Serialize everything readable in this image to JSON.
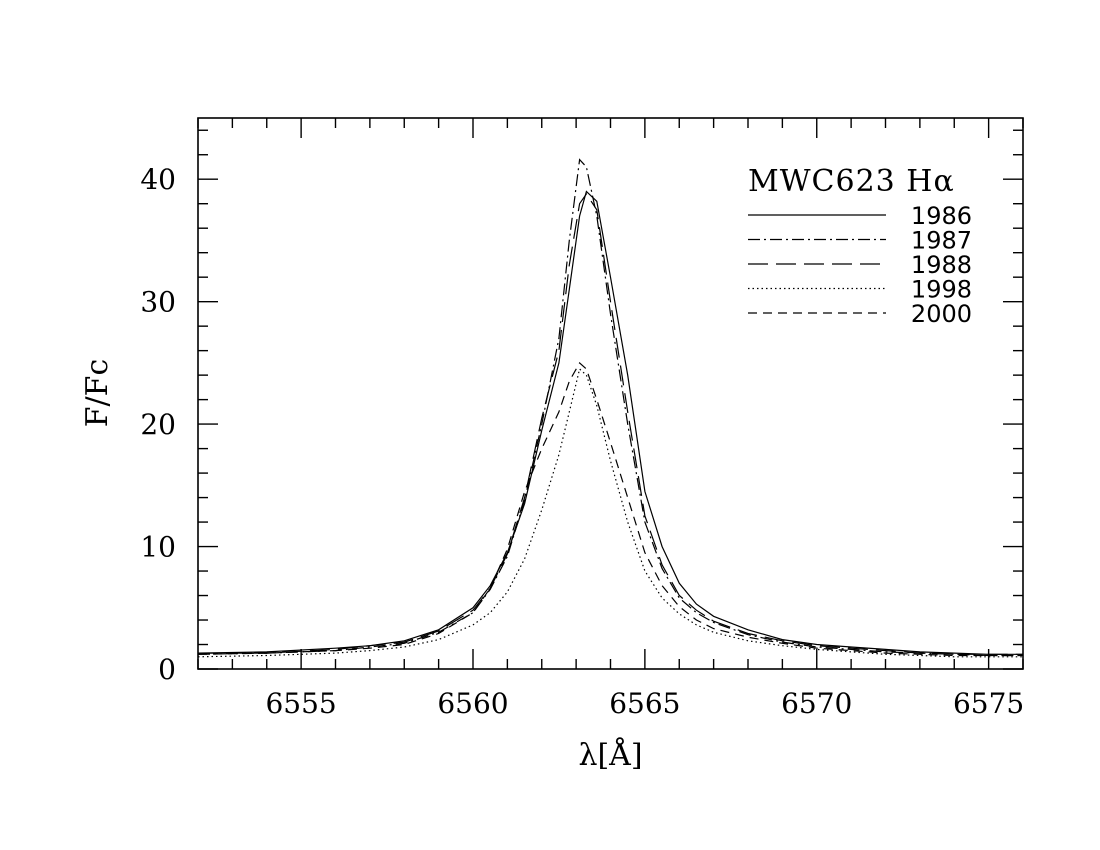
{
  "chart_data": {
    "type": "line",
    "title": "MWC623 Hα",
    "xlabel": "λ[Å]",
    "ylabel": "F/Fc",
    "xlim": [
      6552,
      6576
    ],
    "ylim": [
      0,
      45
    ],
    "x_ticks": [
      6555,
      6560,
      6565,
      6570,
      6575
    ],
    "y_ticks": [
      0,
      10,
      20,
      30,
      40
    ],
    "legend_position": "top-right",
    "grid": false,
    "series": [
      {
        "name": "1986",
        "dash": "solid",
        "points": [
          [
            6552,
            1.3
          ],
          [
            6554,
            1.4
          ],
          [
            6556,
            1.7
          ],
          [
            6557,
            1.9
          ],
          [
            6558,
            2.3
          ],
          [
            6559,
            3.2
          ],
          [
            6560,
            5.0
          ],
          [
            6560.5,
            6.8
          ],
          [
            6561,
            9.5
          ],
          [
            6561.5,
            13.5
          ],
          [
            6562,
            19.5
          ],
          [
            6562.5,
            25
          ],
          [
            6562.8,
            31
          ],
          [
            6563.1,
            37
          ],
          [
            6563.3,
            39.0
          ],
          [
            6563.6,
            38.2
          ],
          [
            6564,
            32
          ],
          [
            6564.5,
            24
          ],
          [
            6565,
            14.5
          ],
          [
            6565.5,
            10
          ],
          [
            6566,
            7.0
          ],
          [
            6566.5,
            5.3
          ],
          [
            6567,
            4.3
          ],
          [
            6568,
            3.2
          ],
          [
            6569,
            2.4
          ],
          [
            6570,
            2.0
          ],
          [
            6571,
            1.8
          ],
          [
            6572,
            1.6
          ],
          [
            6573,
            1.4
          ],
          [
            6574,
            1.3
          ],
          [
            6575,
            1.2
          ],
          [
            6576,
            1.2
          ]
        ]
      },
      {
        "name": "1987",
        "dash": "dashdot",
        "points": [
          [
            6552,
            1.2
          ],
          [
            6554,
            1.3
          ],
          [
            6556,
            1.5
          ],
          [
            6557,
            1.8
          ],
          [
            6558,
            2.1
          ],
          [
            6559,
            3.0
          ],
          [
            6560,
            4.6
          ],
          [
            6560.5,
            6.5
          ],
          [
            6561,
            9.2
          ],
          [
            6561.5,
            13.8
          ],
          [
            6562,
            20
          ],
          [
            6562.5,
            27
          ],
          [
            6562.8,
            35
          ],
          [
            6563.1,
            41.6
          ],
          [
            6563.3,
            41
          ],
          [
            6563.6,
            37
          ],
          [
            6564,
            29
          ],
          [
            6564.5,
            20
          ],
          [
            6565,
            12
          ],
          [
            6565.5,
            8.2
          ],
          [
            6566,
            5.8
          ],
          [
            6566.5,
            4.6
          ],
          [
            6567,
            3.8
          ],
          [
            6568,
            2.8
          ],
          [
            6569,
            2.2
          ],
          [
            6570,
            1.8
          ],
          [
            6571,
            1.6
          ],
          [
            6572,
            1.4
          ],
          [
            6573,
            1.3
          ],
          [
            6574,
            1.2
          ],
          [
            6575,
            1.1
          ],
          [
            6576,
            1.1
          ]
        ]
      },
      {
        "name": "1988",
        "dash": "longdash",
        "points": [
          [
            6552,
            1.3
          ],
          [
            6554,
            1.3
          ],
          [
            6556,
            1.6
          ],
          [
            6557,
            1.9
          ],
          [
            6558,
            2.2
          ],
          [
            6559,
            3.1
          ],
          [
            6560,
            4.8
          ],
          [
            6560.5,
            6.6
          ],
          [
            6561,
            9.4
          ],
          [
            6561.5,
            14
          ],
          [
            6562,
            20.5
          ],
          [
            6562.5,
            26
          ],
          [
            6562.8,
            33
          ],
          [
            6563.1,
            38
          ],
          [
            6563.3,
            38.8
          ],
          [
            6563.6,
            37.5
          ],
          [
            6564,
            30
          ],
          [
            6564.5,
            21
          ],
          [
            6565,
            12.5
          ],
          [
            6565.5,
            8.5
          ],
          [
            6566,
            6.0
          ],
          [
            6566.5,
            4.8
          ],
          [
            6567,
            3.9
          ],
          [
            6568,
            2.9
          ],
          [
            6569,
            2.3
          ],
          [
            6570,
            1.9
          ],
          [
            6571,
            1.7
          ],
          [
            6572,
            1.5
          ],
          [
            6573,
            1.3
          ],
          [
            6574,
            1.2
          ],
          [
            6575,
            1.2
          ],
          [
            6576,
            1.2
          ]
        ]
      },
      {
        "name": "1998",
        "dash": "dotted",
        "points": [
          [
            6552,
            1.0
          ],
          [
            6554,
            1.1
          ],
          [
            6556,
            1.3
          ],
          [
            6557,
            1.5
          ],
          [
            6558,
            1.8
          ],
          [
            6559,
            2.4
          ],
          [
            6560,
            3.6
          ],
          [
            6560.5,
            4.6
          ],
          [
            6561,
            6.3
          ],
          [
            6561.5,
            9.0
          ],
          [
            6562,
            13
          ],
          [
            6562.5,
            17.5
          ],
          [
            6562.8,
            21
          ],
          [
            6563.1,
            24.5
          ],
          [
            6563.3,
            24
          ],
          [
            6563.6,
            21.5
          ],
          [
            6564,
            17
          ],
          [
            6564.5,
            12
          ],
          [
            6565,
            8.0
          ],
          [
            6565.5,
            5.8
          ],
          [
            6566,
            4.5
          ],
          [
            6566.5,
            3.6
          ],
          [
            6567,
            3.0
          ],
          [
            6568,
            2.3
          ],
          [
            6569,
            1.9
          ],
          [
            6570,
            1.6
          ],
          [
            6571,
            1.4
          ],
          [
            6572,
            1.2
          ],
          [
            6573,
            1.1
          ],
          [
            6574,
            1.0
          ],
          [
            6575,
            1.0
          ],
          [
            6576,
            1.0
          ]
        ]
      },
      {
        "name": "2000",
        "dash": "dashed",
        "points": [
          [
            6552,
            1.2
          ],
          [
            6554,
            1.3
          ],
          [
            6556,
            1.5
          ],
          [
            6557,
            1.7
          ],
          [
            6558,
            2.0
          ],
          [
            6559,
            2.9
          ],
          [
            6560,
            4.6
          ],
          [
            6560.5,
            6.6
          ],
          [
            6561,
            9.8
          ],
          [
            6561.5,
            14.5
          ],
          [
            6562,
            18
          ],
          [
            6562.5,
            21
          ],
          [
            6562.8,
            23.5
          ],
          [
            6563.1,
            25
          ],
          [
            6563.3,
            24.5
          ],
          [
            6563.6,
            22
          ],
          [
            6564,
            18.5
          ],
          [
            6564.5,
            14
          ],
          [
            6565,
            9.5
          ],
          [
            6565.5,
            6.8
          ],
          [
            6566,
            5.1
          ],
          [
            6566.5,
            4.0
          ],
          [
            6567,
            3.3
          ],
          [
            6568,
            2.6
          ],
          [
            6569,
            2.1
          ],
          [
            6570,
            1.7
          ],
          [
            6571,
            1.5
          ],
          [
            6572,
            1.3
          ],
          [
            6573,
            1.2
          ],
          [
            6574,
            1.1
          ],
          [
            6575,
            1.1
          ],
          [
            6576,
            1.1
          ]
        ]
      }
    ]
  }
}
